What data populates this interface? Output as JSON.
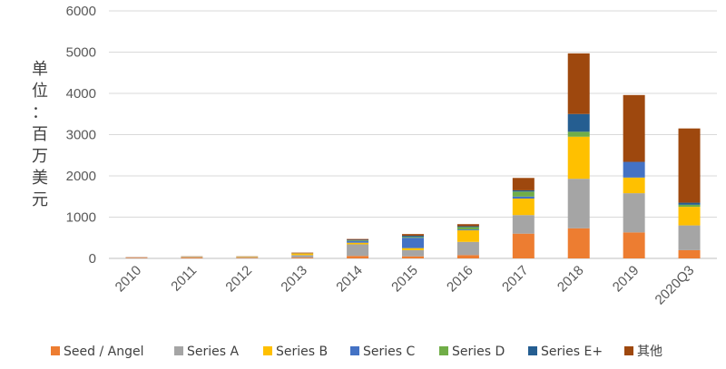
{
  "chart_data": {
    "type": "bar",
    "stacked": true,
    "title": "",
    "xlabel": "",
    "ylabel": "单位：百万美元",
    "ylabel_chars": [
      "单",
      "位",
      "：",
      "百",
      "万",
      "美",
      "元"
    ],
    "ylim": [
      0,
      6000
    ],
    "yticks": [
      0,
      1000,
      2000,
      3000,
      4000,
      5000,
      6000
    ],
    "grid": true,
    "legend_position": "bottom",
    "categories": [
      "2010",
      "2011",
      "2012",
      "2013",
      "2014",
      "2015",
      "2016",
      "2017",
      "2018",
      "2019",
      "2020Q3"
    ],
    "series": [
      {
        "name": "Seed / Angel",
        "color": "#ED7D31",
        "values": [
          15,
          20,
          15,
          20,
          60,
          50,
          80,
          600,
          730,
          630,
          200
        ]
      },
      {
        "name": "Series A",
        "color": "#A5A5A5",
        "values": [
          10,
          20,
          20,
          60,
          280,
          150,
          320,
          450,
          1200,
          950,
          600
        ]
      },
      {
        "name": "Series B",
        "color": "#FFC000",
        "values": [
          0,
          5,
          10,
          40,
          40,
          50,
          280,
          400,
          1020,
          380,
          450
        ]
      },
      {
        "name": "Series C",
        "color": "#4472C4",
        "values": [
          0,
          0,
          0,
          5,
          40,
          250,
          20,
          50,
          0,
          380,
          0
        ]
      },
      {
        "name": "Series D",
        "color": "#70AD47",
        "values": [
          0,
          0,
          0,
          0,
          15,
          20,
          60,
          120,
          120,
          0,
          50
        ]
      },
      {
        "name": "Series E+",
        "color": "#255E91",
        "values": [
          0,
          0,
          0,
          0,
          15,
          30,
          20,
          30,
          430,
          0,
          50
        ]
      },
      {
        "name": "其他",
        "color": "#9E480E",
        "values": [
          5,
          5,
          5,
          15,
          20,
          40,
          50,
          300,
          1470,
          1620,
          1800
        ]
      }
    ]
  }
}
